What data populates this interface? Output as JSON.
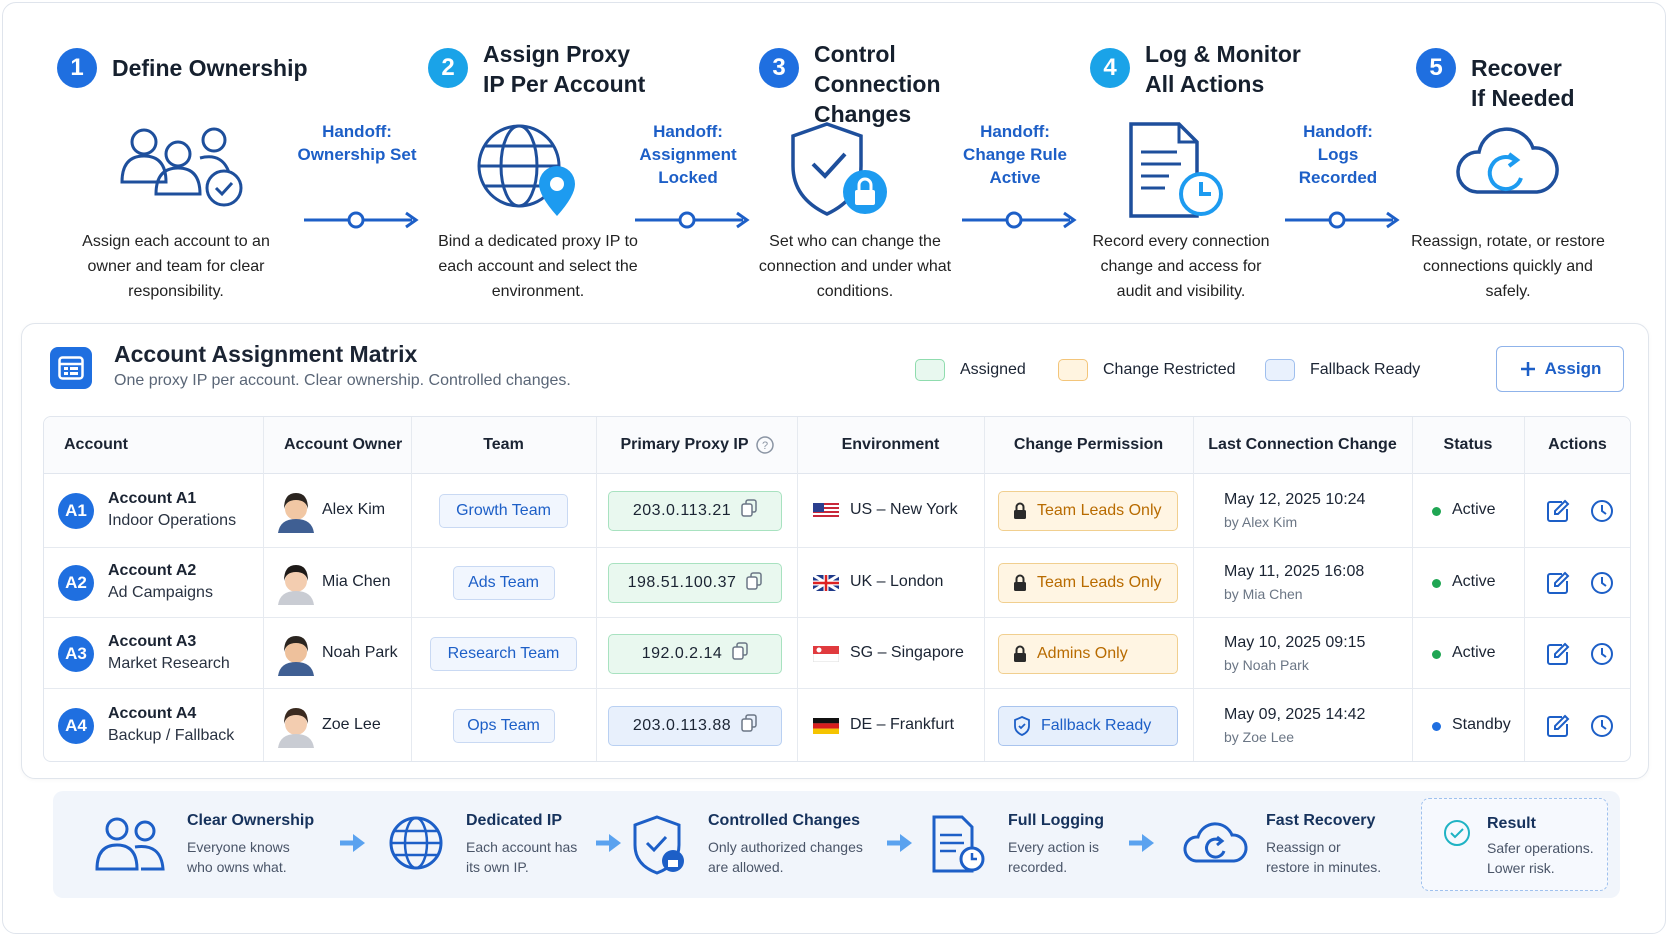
{
  "steps": [
    {
      "number": "1",
      "title": "Define Ownership",
      "description": "Assign each account to an owner and team for clear responsibility."
    },
    {
      "number": "2",
      "title": "Assign Proxy IP Per Account",
      "description": "Bind a dedicated proxy IP to each account and select the environment."
    },
    {
      "number": "3",
      "title": "Control Connection Changes",
      "description": "Set who can change the connection and under what conditions."
    },
    {
      "number": "4",
      "title": "Log & Monitor All Actions",
      "description": "Record every connection change and access for audit and visibility."
    },
    {
      "number": "5",
      "title": "Recover If Needed",
      "description": "Reassign, rotate, or restore connections quickly and safely."
    }
  ],
  "handoffs": [
    {
      "prefix": "Handoff:",
      "label": "Ownership Set"
    },
    {
      "prefix": "Handoff:",
      "label": "Assignment Locked"
    },
    {
      "prefix": "Handoff:",
      "label": "Change Rule Active"
    },
    {
      "prefix": "Handoff:",
      "label": "Logs Recorded"
    }
  ],
  "matrix": {
    "title": "Account Assignment Matrix",
    "subtitle": "One proxy IP per account. Clear ownership. Controlled changes.",
    "legend": [
      "Assigned",
      "Change Restricted",
      "Fallback Ready"
    ],
    "assign_button": "Assign",
    "columns": [
      "Account",
      "Account Owner",
      "Team",
      "Primary Proxy IP",
      "Environment",
      "Change Permission",
      "Last Connection Change",
      "Status",
      "Actions"
    ],
    "rows": [
      {
        "badge": "A1",
        "account": "Account A1",
        "description": "Indoor Operations",
        "owner": "Alex Kim",
        "team": "Growth Team",
        "ip": "203.0.113.21",
        "environment": "US – New York",
        "permission": "Team Leads Only",
        "last_change": "May 12, 2025 10:24",
        "by": "by Alex Kim",
        "status": "Active"
      },
      {
        "badge": "A2",
        "account": "Account A2",
        "description": "Ad Campaigns",
        "owner": "Mia Chen",
        "team": "Ads Team",
        "ip": "198.51.100.37",
        "environment": "UK – London",
        "permission": "Team Leads Only",
        "last_change": "May 11, 2025 16:08",
        "by": "by Mia Chen",
        "status": "Active"
      },
      {
        "badge": "A3",
        "account": "Account A3",
        "description": "Market Research",
        "owner": "Noah Park",
        "team": "Research Team",
        "ip": "192.0.2.14",
        "environment": "SG – Singapore",
        "permission": "Admins Only",
        "last_change": "May 10, 2025 09:15",
        "by": "by Noah Park",
        "status": "Active"
      },
      {
        "badge": "A4",
        "account": "Account A4",
        "description": "Backup / Fallback",
        "owner": "Zoe Lee",
        "team": "Ops Team",
        "ip": "203.0.113.88",
        "environment": "DE – Frankfurt",
        "permission": "Fallback Ready",
        "last_change": "May 09, 2025 14:42",
        "by": "by Zoe Lee",
        "status": "Standby"
      }
    ]
  },
  "summary": [
    {
      "title": "Clear Ownership",
      "text": "Everyone knows who owns what."
    },
    {
      "title": "Dedicated IP",
      "text": "Each account has its own IP."
    },
    {
      "title": "Controlled Changes",
      "text": "Only authorized changes are allowed."
    },
    {
      "title": "Full Logging",
      "text": "Every action is recorded."
    },
    {
      "title": "Fast Recovery",
      "text": "Reassign or restore in minutes."
    }
  ],
  "result": {
    "title": "Result",
    "text": "Safer operations. Lower risk."
  }
}
